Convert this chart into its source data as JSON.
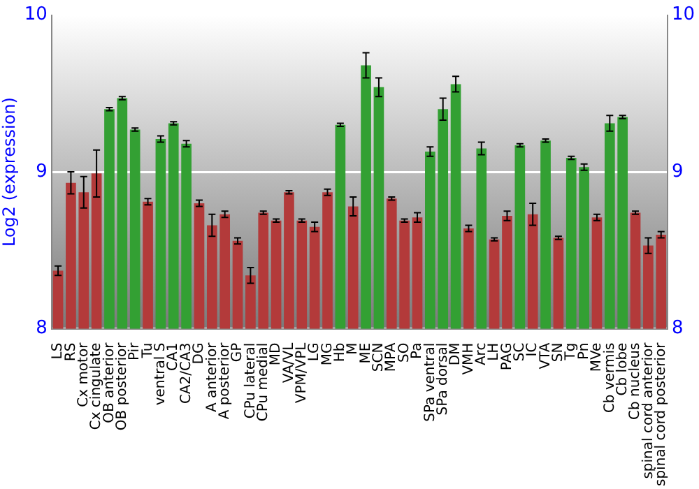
{
  "chart_data": {
    "type": "bar",
    "ylabel": "Log2 (expression)",
    "categories": [
      "LS",
      "RS",
      "Cx motor",
      "Cx cingulate",
      "OB anterior",
      "OB posterior",
      "Pir",
      "Tu",
      "ventral S",
      "CA1",
      "CA2/CA3",
      "DG",
      "A anterior",
      "A posterior",
      "GP",
      "CPu lateral",
      "CPu medial",
      "MD",
      "VA/VL",
      "VPM/VPL",
      "LG",
      "MG",
      "Hb",
      "M",
      "ME",
      "SCN",
      "MPA",
      "SO",
      "Pa",
      "SPa ventral",
      "SPa dorsal",
      "DM",
      "VMH",
      "Arc",
      "LH",
      "PAG",
      "SC",
      "IC",
      "VTA",
      "SN",
      "Tg",
      "Pn",
      "MVe",
      "Cb vermis",
      "Cb lobe",
      "Cb nucleus",
      "spinal cord anterior",
      "spinal cord posterior"
    ],
    "values": [
      8.37,
      8.93,
      8.87,
      8.99,
      9.4,
      9.47,
      9.27,
      8.81,
      9.21,
      9.31,
      9.18,
      8.8,
      8.66,
      8.73,
      8.56,
      8.34,
      8.74,
      8.69,
      8.87,
      8.69,
      8.65,
      8.87,
      9.3,
      8.78,
      9.68,
      9.54,
      8.83,
      8.69,
      8.71,
      9.13,
      9.4,
      9.56,
      8.64,
      9.15,
      8.57,
      8.72,
      9.17,
      8.73,
      9.2,
      8.58,
      9.09,
      9.03,
      8.71,
      9.31,
      9.35,
      8.74,
      8.53,
      8.6
    ],
    "errors": [
      0.03,
      0.07,
      0.1,
      0.15,
      0.01,
      0.01,
      0.01,
      0.02,
      0.02,
      0.01,
      0.02,
      0.02,
      0.07,
      0.02,
      0.02,
      0.05,
      0.01,
      0.01,
      0.01,
      0.01,
      0.03,
      0.02,
      0.01,
      0.06,
      0.08,
      0.06,
      0.01,
      0.01,
      0.03,
      0.03,
      0.07,
      0.05,
      0.02,
      0.04,
      0.01,
      0.03,
      0.01,
      0.07,
      0.01,
      0.01,
      0.01,
      0.02,
      0.02,
      0.05,
      0.01,
      0.01,
      0.05,
      0.02
    ],
    "colors": [
      "#b33a3a",
      "#b33a3a",
      "#b33a3a",
      "#b33a3a",
      "#33a033",
      "#33a033",
      "#33a033",
      "#b33a3a",
      "#33a033",
      "#33a033",
      "#33a033",
      "#b33a3a",
      "#b33a3a",
      "#b33a3a",
      "#b33a3a",
      "#b33a3a",
      "#b33a3a",
      "#b33a3a",
      "#b33a3a",
      "#b33a3a",
      "#b33a3a",
      "#b33a3a",
      "#33a033",
      "#b33a3a",
      "#33a033",
      "#33a033",
      "#b33a3a",
      "#b33a3a",
      "#b33a3a",
      "#33a033",
      "#33a033",
      "#33a033",
      "#b33a3a",
      "#33a033",
      "#b33a3a",
      "#b33a3a",
      "#33a033",
      "#b33a3a",
      "#33a033",
      "#b33a3a",
      "#33a033",
      "#33a033",
      "#b33a3a",
      "#33a033",
      "#33a033",
      "#b33a3a",
      "#b33a3a",
      "#b33a3a"
    ],
    "ylim": [
      8,
      10
    ],
    "yticks": [
      8,
      9,
      10
    ],
    "y2lim": [
      8,
      10
    ],
    "y2ticks": [
      8,
      9,
      10
    ],
    "grid": "y",
    "legend": false
  }
}
